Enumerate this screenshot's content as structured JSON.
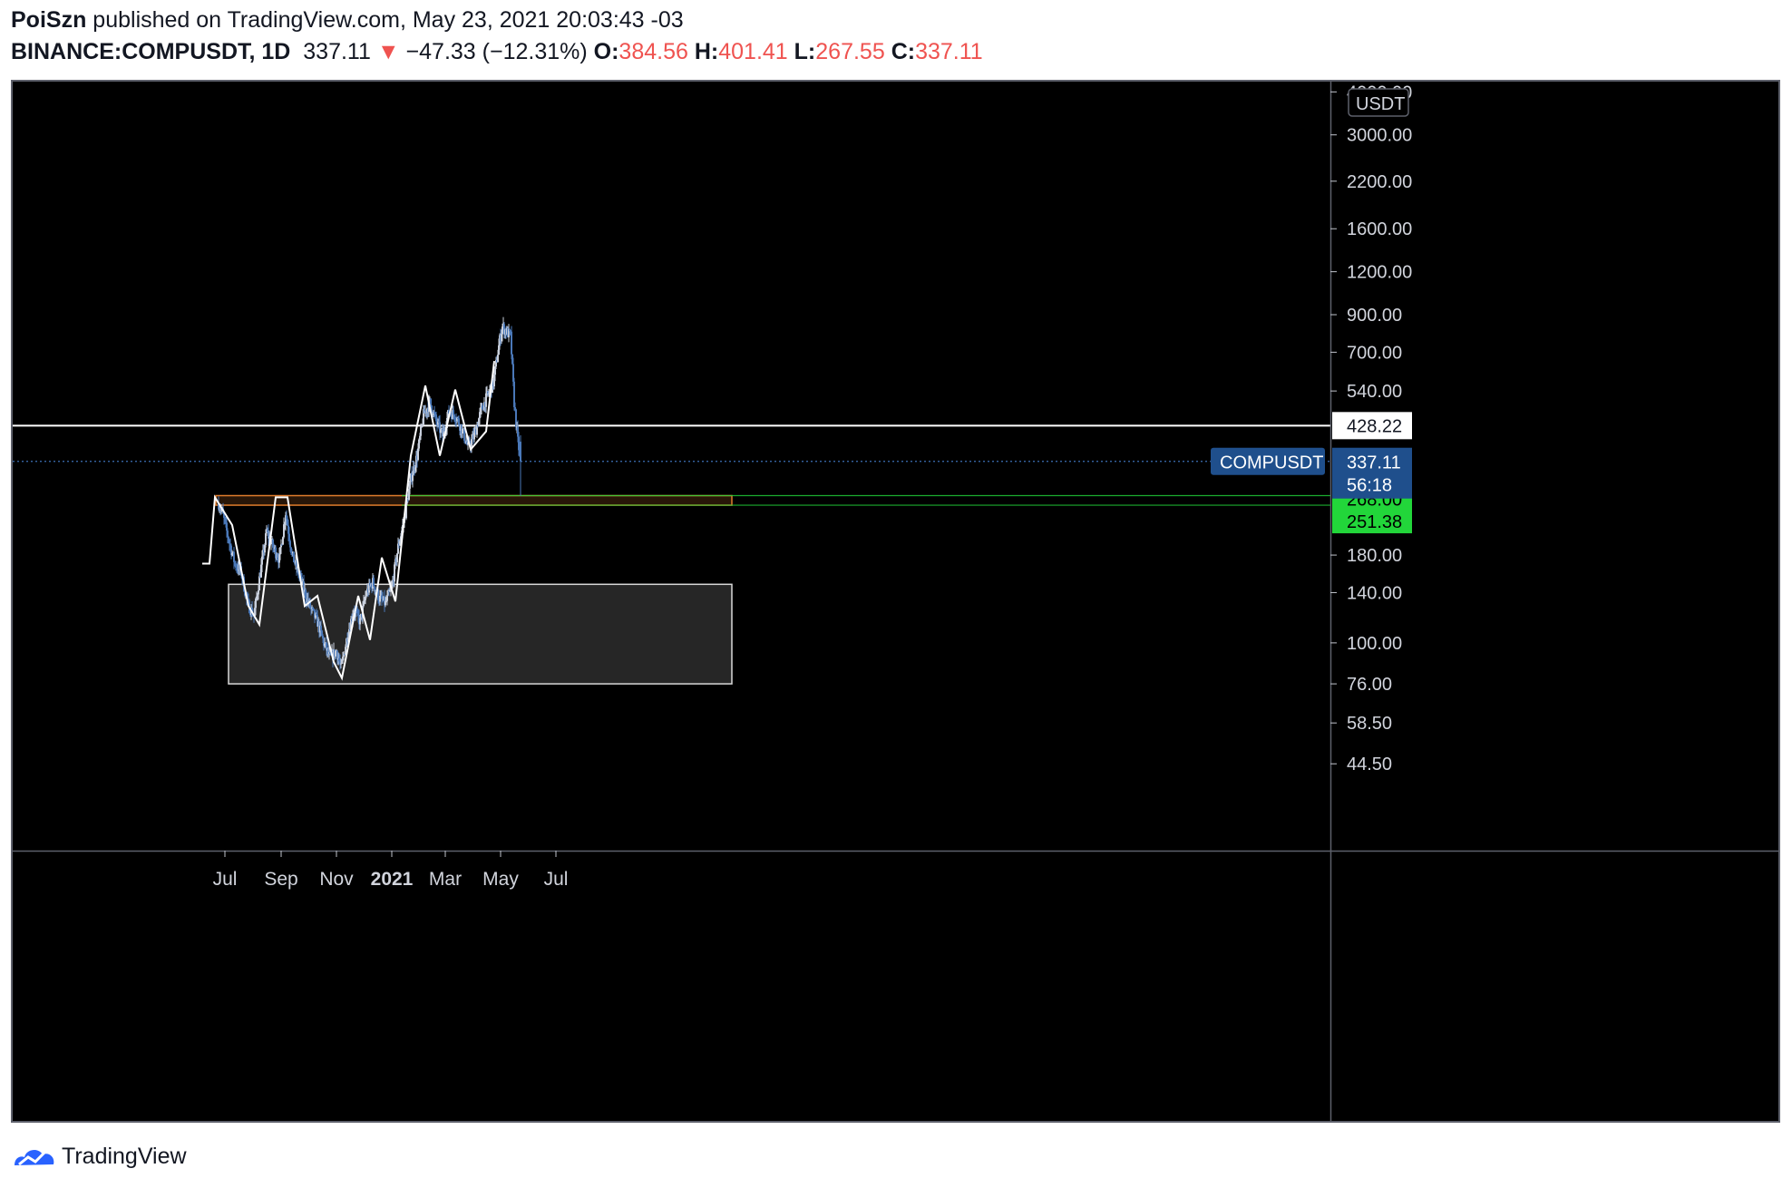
{
  "header": {
    "author": "PoiSzn",
    "published": "published on TradingView.com, May 23, 2021 20:03:43 -03",
    "symbol": "BINANCE:COMPUSDT, 1D",
    "last": "337.11",
    "change": "−47.33 (−12.31%)",
    "open_label": "O:",
    "open": "384.56",
    "high_label": "H:",
    "high": "401.41",
    "low_label": "L:",
    "low": "267.55",
    "close_label": "C:",
    "close": "337.11",
    "arrow": "▼"
  },
  "footer": {
    "brand": "TradingView",
    "logo_icon": "tradingview-logo-icon"
  },
  "colors": {
    "background": "#000000",
    "candle": "#c8cfdc",
    "candle_dark": "#4a78b8",
    "drawing": "#ffffff",
    "orange": "#e07c2c",
    "green_label": "#22d63a",
    "price_label": "#1f4f8c",
    "box_fill": "#262626"
  },
  "chart_data": {
    "type": "candlestick",
    "scale": "log",
    "currency": "USDT",
    "x_ticks": [
      "Jul",
      "Sep",
      "Nov",
      "2021",
      "Mar",
      "May",
      "Jul"
    ],
    "y_ticks": [
      "4000.00",
      "3000.00",
      "2200.00",
      "1600.00",
      "1200.00",
      "900.00",
      "700.00",
      "540.00",
      "180.00",
      "140.00",
      "100.00",
      "76.00",
      "58.50",
      "44.50"
    ],
    "ylim": [
      33,
      4000
    ],
    "series": [
      {
        "name": "COMPUSDT",
        "start": "2020-06-24",
        "end": "2021-05-23",
        "anchors": [
          [
            "2020-06-24",
            255
          ],
          [
            "2020-06-28",
            240
          ],
          [
            "2020-07-05",
            200
          ],
          [
            "2020-07-12",
            170
          ],
          [
            "2020-07-19",
            160
          ],
          [
            "2020-07-26",
            130
          ],
          [
            "2020-08-02",
            120
          ],
          [
            "2020-08-09",
            160
          ],
          [
            "2020-08-16",
            210
          ],
          [
            "2020-08-23",
            190
          ],
          [
            "2020-08-30",
            175
          ],
          [
            "2020-09-06",
            240
          ],
          [
            "2020-09-13",
            180
          ],
          [
            "2020-09-20",
            160
          ],
          [
            "2020-09-27",
            140
          ],
          [
            "2020-10-04",
            125
          ],
          [
            "2020-10-11",
            115
          ],
          [
            "2020-10-18",
            100
          ],
          [
            "2020-10-25",
            90
          ],
          [
            "2020-11-01",
            95
          ],
          [
            "2020-11-06",
            84
          ],
          [
            "2020-11-13",
            105
          ],
          [
            "2020-11-20",
            125
          ],
          [
            "2020-11-27",
            115
          ],
          [
            "2020-12-04",
            140
          ],
          [
            "2020-12-11",
            150
          ],
          [
            "2020-12-18",
            135
          ],
          [
            "2020-12-25",
            130
          ],
          [
            "2021-01-01",
            145
          ],
          [
            "2021-01-08",
            190
          ],
          [
            "2021-01-15",
            230
          ],
          [
            "2021-01-22",
            300
          ],
          [
            "2021-01-29",
            350
          ],
          [
            "2021-02-05",
            460
          ],
          [
            "2021-02-12",
            500
          ],
          [
            "2021-02-19",
            440
          ],
          [
            "2021-02-26",
            400
          ],
          [
            "2021-03-05",
            470
          ],
          [
            "2021-03-12",
            460
          ],
          [
            "2021-03-19",
            420
          ],
          [
            "2021-03-26",
            370
          ],
          [
            "2021-04-02",
            400
          ],
          [
            "2021-04-09",
            470
          ],
          [
            "2021-04-16",
            520
          ],
          [
            "2021-04-23",
            570
          ],
          [
            "2021-04-30",
            760
          ],
          [
            "2021-05-03",
            830
          ],
          [
            "2021-05-08",
            800
          ],
          [
            "2021-05-12",
            780
          ],
          [
            "2021-05-16",
            500
          ],
          [
            "2021-05-20",
            385
          ],
          [
            "2021-05-23",
            337.11
          ]
        ]
      }
    ],
    "last_bar": {
      "open": 384.56,
      "high": 401.41,
      "low": 267.55,
      "close": 337.11
    },
    "horizontal_lines": [
      {
        "price": 428.22,
        "label": "428.22",
        "color": "#ffffff"
      },
      {
        "price": 268.0,
        "label": "268.00",
        "color": "#22d63a"
      },
      {
        "price": 251.38,
        "label": "251.38",
        "color": "#22d63a"
      }
    ],
    "current_price": {
      "price": 337.11,
      "symbol_label": "COMPUSDT",
      "label": "337.11",
      "countdown": "56:18"
    },
    "boxes": [
      {
        "kind": "orange-zone",
        "from": "2020-06-21",
        "to": "2021-05-23",
        "low": 251.38,
        "high": 268.0
      },
      {
        "kind": "gray-zone",
        "from": "2020-07-05",
        "to": "2021-05-23",
        "low": 76,
        "high": 148
      }
    ],
    "zigzag": [
      [
        "2020-06-06",
        170
      ],
      [
        "2020-06-14",
        170
      ],
      [
        "2020-06-20",
        265
      ],
      [
        "2020-07-09",
        220
      ],
      [
        "2020-07-27",
        128
      ],
      [
        "2020-08-08",
        113
      ],
      [
        "2020-08-26",
        265
      ],
      [
        "2020-09-08",
        265
      ],
      [
        "2020-09-27",
        128
      ],
      [
        "2020-10-11",
        137
      ],
      [
        "2020-10-29",
        88
      ],
      [
        "2020-11-07",
        79
      ],
      [
        "2020-11-25",
        137
      ],
      [
        "2020-12-08",
        102
      ],
      [
        "2020-12-21",
        177
      ],
      [
        "2021-01-05",
        132
      ],
      [
        "2021-01-22",
        350
      ],
      [
        "2021-02-07",
        560
      ],
      [
        "2021-02-23",
        350
      ],
      [
        "2021-03-12",
        545
      ],
      [
        "2021-03-29",
        365
      ],
      [
        "2021-04-15",
        412
      ],
      [
        "2021-04-24",
        660
      ]
    ]
  }
}
